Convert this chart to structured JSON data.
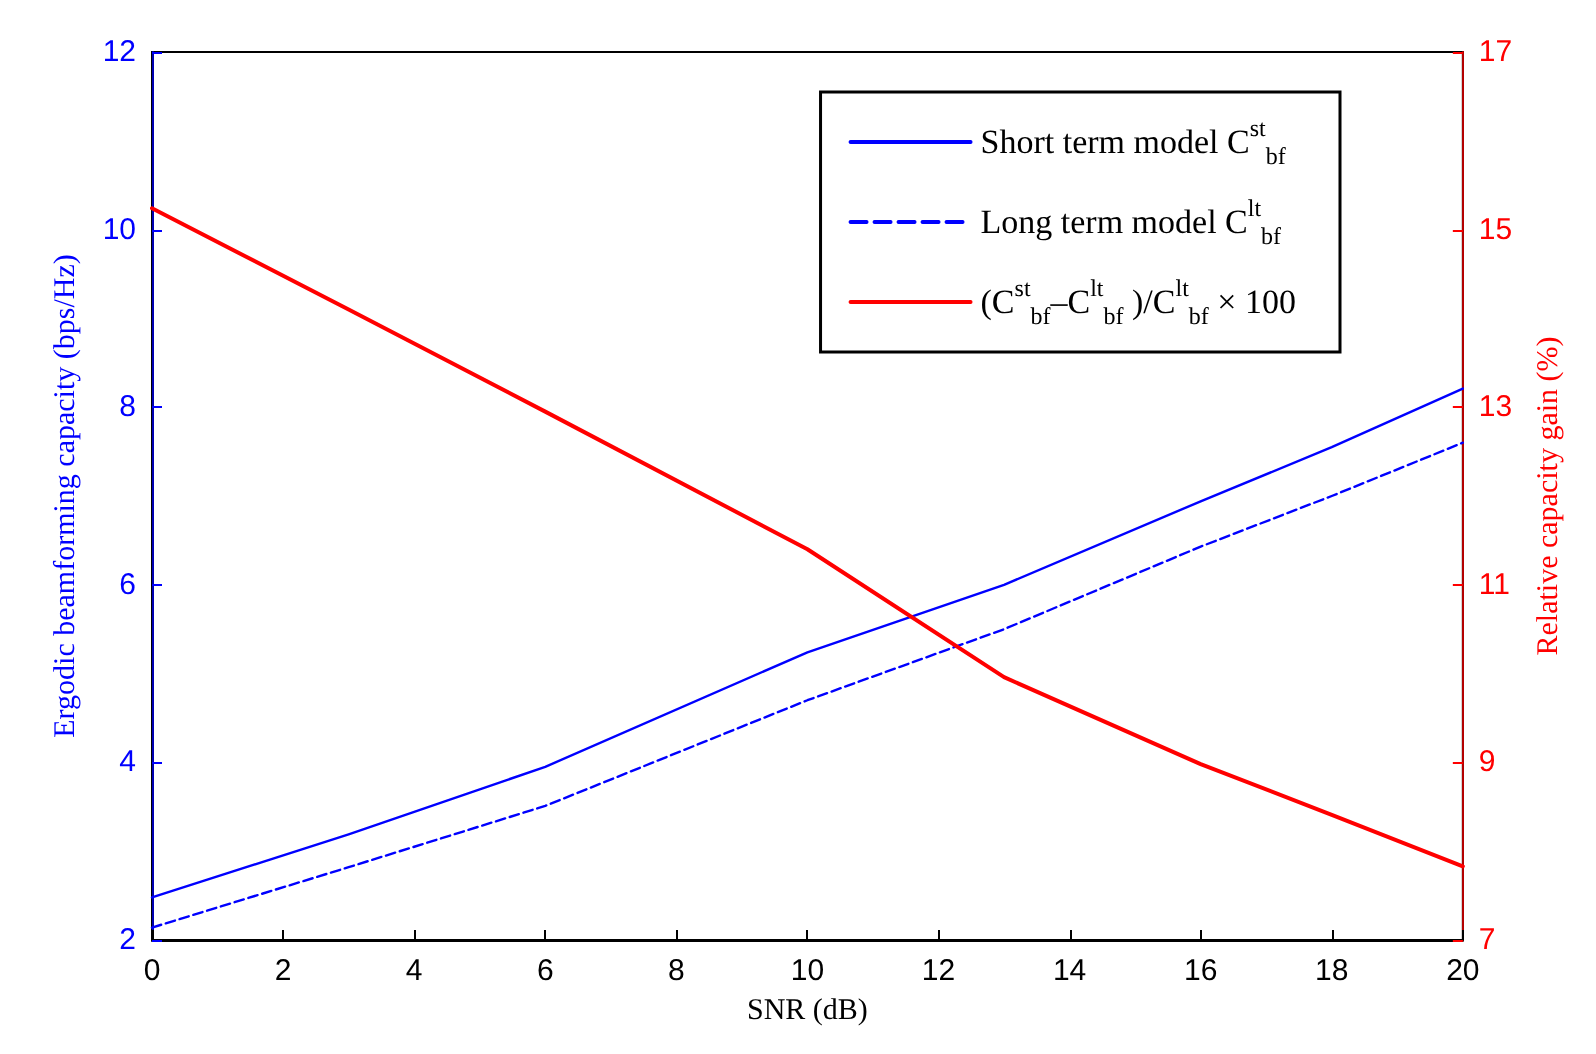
{
  "chart_data": {
    "type": "line",
    "xlabel": "SNR (dB)",
    "ylabel": "Ergodic beamforming capacity (bps/Hz)",
    "y2label": "Relative capacity gain (%)",
    "x": [
      0,
      3,
      6,
      10,
      13,
      16,
      18,
      20
    ],
    "series": [
      {
        "name": "Short term model C$^{st}$$_{bf}$",
        "color": "#0000ff",
        "line_style": "solid",
        "values": [
          2.48,
          3.19,
          3.95,
          5.24,
          6.0,
          6.94,
          7.55,
          8.21
        ]
      },
      {
        "name": "Long term model C$^{lt}$$_{bf}$",
        "color": "#0000ff",
        "line_style": "dashed",
        "values": [
          2.14,
          2.82,
          3.51,
          4.7,
          5.5,
          6.43,
          7.0,
          7.6
        ]
      },
      {
        "name": "(C$^{st}$$_{bf}$–C$^{lt}$$_{bf}$ )/C$^{lt}$$_{bf}$ × 100",
        "color": "#ff0000",
        "line_style": "solid",
        "axis": "y2",
        "values": [
          15.24,
          14.1,
          12.95,
          11.4,
          9.96,
          8.98,
          8.41,
          7.83
        ]
      }
    ],
    "xlim": [
      0,
      20
    ],
    "xticks": [
      0,
      2,
      4,
      6,
      8,
      10,
      12,
      14,
      16,
      18,
      20
    ],
    "ylim": [
      2,
      12
    ],
    "yticks": [
      2,
      4,
      6,
      8,
      10,
      12
    ],
    "y2lim": [
      7,
      17
    ],
    "y2ticks": [
      7,
      9,
      11,
      13,
      15,
      17
    ],
    "grid": false,
    "legend": "top right",
    "marker": "none"
  }
}
